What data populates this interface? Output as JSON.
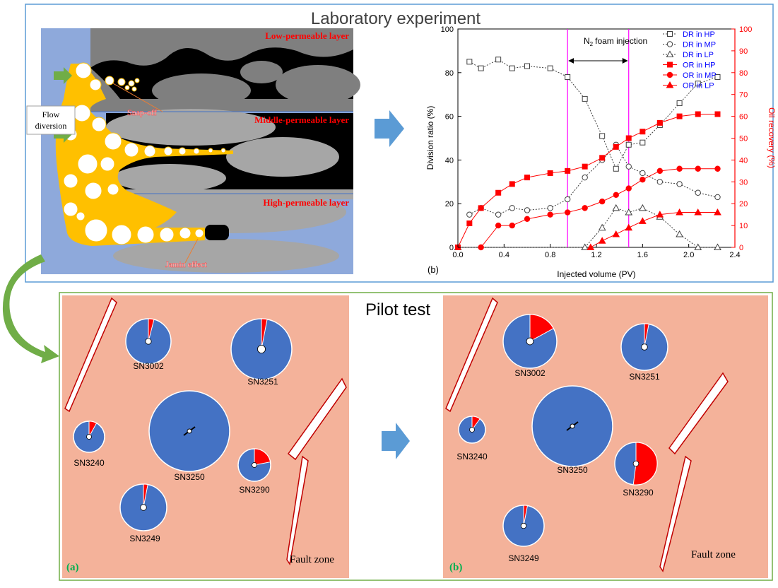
{
  "top_title": "Laboratory experiment",
  "bottom_title": "Pilot test",
  "layers": {
    "low": "Low-permeable layer",
    "middle": "Middle-permeable layer",
    "high": "High-permeable layer"
  },
  "mechanisms": {
    "snap_off": "Snap-off",
    "jamin": "Jamin effect"
  },
  "flow_diversion": {
    "line1": "Flow",
    "line2": "diversion"
  },
  "injection_label": "foam injection",
  "injection_species": "N",
  "injection_sub": "2",
  "chart_panel_label": "(b)",
  "panel_a_label": "(a)",
  "panel_b_label": "(b)",
  "fault_zone": "Fault zone",
  "colors": {
    "water": "#8ea9db",
    "foam": "#ffc000",
    "oil": "#000000",
    "rock_dark": "#7f7f7f",
    "rock_light": "#a6a6a6",
    "map_bg": "#f4b29a",
    "well_blue": "#4472c4",
    "well_red": "#ff0000",
    "layer_text": "#ff0000",
    "accent_arrow": "#5b9bd5",
    "green_frame": "#70ad47",
    "magenta": "#ff00ff"
  },
  "chart_data": {
    "type": "line",
    "xlabel": "Injected volume (PV)",
    "ylabel_left": "Division ratio (%)",
    "ylabel_right": "Oil recovery (%)",
    "xlim": [
      0,
      2.4
    ],
    "ylim_left": [
      0,
      100
    ],
    "ylim_right": [
      0,
      100
    ],
    "x_ticks": [
      "0.0",
      "0.4",
      "0.8",
      "1.2",
      "1.6",
      "2.0",
      "2.4"
    ],
    "y_ticks_left": [
      "0",
      "20",
      "40",
      "60",
      "80",
      "100"
    ],
    "y_ticks_right": [
      "0",
      "10",
      "20",
      "30",
      "40",
      "50",
      "60",
      "70",
      "80",
      "90",
      "100"
    ],
    "injection_window": [
      0.95,
      1.48
    ],
    "series": [
      {
        "name": "DR in HP",
        "axis": "left",
        "marker": "square-open",
        "x": [
          0.1,
          0.2,
          0.35,
          0.47,
          0.6,
          0.8,
          0.95,
          1.1,
          1.25,
          1.37,
          1.48,
          1.6,
          1.75,
          1.92,
          2.08,
          2.25
        ],
        "y": [
          85,
          82,
          86,
          82,
          83,
          82,
          78,
          68,
          51,
          36,
          47,
          48,
          56,
          66,
          75,
          78
        ]
      },
      {
        "name": "DR in MP",
        "axis": "left",
        "marker": "circle-open",
        "x": [
          0.1,
          0.2,
          0.35,
          0.47,
          0.6,
          0.8,
          0.95,
          1.1,
          1.25,
          1.37,
          1.48,
          1.6,
          1.75,
          1.92,
          2.08,
          2.25
        ],
        "y": [
          15,
          18,
          15,
          18,
          17,
          18,
          22,
          32,
          40,
          47,
          37,
          34,
          30,
          29,
          25,
          23
        ]
      },
      {
        "name": "DR in LP",
        "axis": "left",
        "marker": "triangle-open",
        "x": [
          0.0,
          1.1,
          1.25,
          1.37,
          1.48,
          1.6,
          1.75,
          1.92,
          2.08,
          2.25
        ],
        "y": [
          0,
          0,
          9,
          18,
          16,
          18,
          14,
          6,
          0,
          0
        ]
      },
      {
        "name": "OR in HP",
        "axis": "right",
        "marker": "square-filled",
        "x": [
          0.0,
          0.1,
          0.2,
          0.35,
          0.47,
          0.6,
          0.8,
          0.95,
          1.1,
          1.25,
          1.37,
          1.48,
          1.6,
          1.75,
          1.92,
          2.08,
          2.25
        ],
        "y": [
          0,
          11,
          18,
          25,
          29,
          32,
          34,
          35,
          37,
          41,
          46,
          50,
          53,
          57,
          60,
          61,
          61
        ]
      },
      {
        "name": "OR in MP",
        "axis": "right",
        "marker": "circle-filled",
        "x": [
          0.2,
          0.35,
          0.47,
          0.6,
          0.8,
          0.95,
          1.1,
          1.25,
          1.37,
          1.48,
          1.6,
          1.75,
          1.92,
          2.08,
          2.25
        ],
        "y": [
          0,
          10,
          10,
          13,
          15,
          16,
          18,
          21,
          24,
          27,
          31,
          35,
          36,
          36,
          36
        ]
      },
      {
        "name": "OR in LP",
        "axis": "right",
        "marker": "triangle-filled",
        "x": [
          1.15,
          1.25,
          1.37,
          1.48,
          1.6,
          1.75,
          1.92,
          2.08,
          2.25
        ],
        "y": [
          0,
          3,
          6,
          9,
          12,
          15,
          16,
          16,
          16
        ]
      }
    ]
  },
  "map_a": {
    "wells": [
      {
        "name": "SN3002",
        "red_fraction": 0.04
      },
      {
        "name": "SN3251",
        "red_fraction": 0.03
      },
      {
        "name": "SN3250",
        "red_fraction": 0
      },
      {
        "name": "SN3240",
        "red_fraction": 0.08
      },
      {
        "name": "SN3290",
        "red_fraction": 0.22
      },
      {
        "name": "SN3249",
        "red_fraction": 0.03
      }
    ]
  },
  "map_b": {
    "wells": [
      {
        "name": "SN3002",
        "red_fraction": 0.17
      },
      {
        "name": "SN3251",
        "red_fraction": 0.03
      },
      {
        "name": "SN3250",
        "red_fraction": 0
      },
      {
        "name": "SN3240",
        "red_fraction": 0.1
      },
      {
        "name": "SN3290",
        "red_fraction": 0.52
      },
      {
        "name": "SN3249",
        "red_fraction": 0.03
      }
    ]
  }
}
